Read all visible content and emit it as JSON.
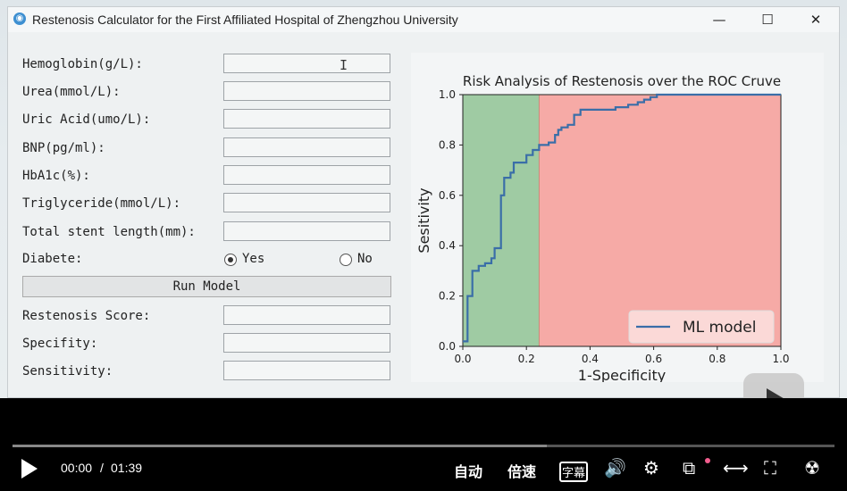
{
  "window": {
    "title": "Restenosis Calculator for the First Affiliated Hospital of Zhengzhou University",
    "minimize": "—",
    "maximize": "☐",
    "close": "✕"
  },
  "form": {
    "fields": [
      {
        "label": "Hemoglobin(g/L):",
        "value": ""
      },
      {
        "label": "Urea(mmol/L):",
        "value": ""
      },
      {
        "label": "Uric Acid(umo/L):",
        "value": ""
      },
      {
        "label": "BNP(pg/ml):",
        "value": ""
      },
      {
        "label": "HbA1c(%):",
        "value": ""
      },
      {
        "label": "Triglyceride(mmol/L):",
        "value": ""
      },
      {
        "label": "Total stent length(mm):",
        "value": ""
      }
    ],
    "diabete_label": "Diabete:",
    "radio_yes": "Yes",
    "radio_no": "No",
    "selected": "Yes",
    "run_button": "Run Model",
    "outputs": [
      {
        "label": "Restenosis Score:",
        "value": ""
      },
      {
        "label": "Specifity:",
        "value": ""
      },
      {
        "label": "Sensitivity:",
        "value": ""
      }
    ],
    "text_cursor": "I"
  },
  "chart_data": {
    "type": "line",
    "title": "Risk Analysis of Restenosis over the ROC Cruve",
    "xlabel": "1-Specificity",
    "ylabel": "Sesitivity",
    "xlim": [
      0.0,
      1.0
    ],
    "ylim": [
      0.0,
      1.0
    ],
    "xticks": [
      "0.0",
      "0.2",
      "0.4",
      "0.6",
      "0.8",
      "1.0"
    ],
    "yticks": [
      "0.0",
      "0.2",
      "0.4",
      "0.6",
      "0.8",
      "1.0"
    ],
    "threshold_x": 0.24,
    "regions": [
      {
        "from": 0.0,
        "to": 0.24,
        "color": "#9fcba3"
      },
      {
        "from": 0.24,
        "to": 1.0,
        "color": "#f6aaa6"
      }
    ],
    "series": [
      {
        "name": "ML model",
        "color": "#3a6ea8",
        "x": [
          0.0,
          0.015,
          0.015,
          0.03,
          0.03,
          0.05,
          0.05,
          0.07,
          0.07,
          0.09,
          0.09,
          0.1,
          0.1,
          0.12,
          0.12,
          0.13,
          0.13,
          0.15,
          0.15,
          0.16,
          0.16,
          0.2,
          0.2,
          0.22,
          0.22,
          0.24,
          0.24,
          0.27,
          0.27,
          0.29,
          0.29,
          0.3,
          0.3,
          0.31,
          0.31,
          0.33,
          0.33,
          0.35,
          0.35,
          0.37,
          0.37,
          0.48,
          0.48,
          0.52,
          0.52,
          0.55,
          0.55,
          0.57,
          0.57,
          0.59,
          0.59,
          0.61,
          0.61,
          0.64,
          0.64,
          1.0
        ],
        "y": [
          0.02,
          0.02,
          0.2,
          0.2,
          0.3,
          0.3,
          0.32,
          0.32,
          0.33,
          0.33,
          0.35,
          0.35,
          0.39,
          0.39,
          0.6,
          0.6,
          0.67,
          0.67,
          0.69,
          0.69,
          0.73,
          0.73,
          0.76,
          0.76,
          0.78,
          0.78,
          0.8,
          0.8,
          0.81,
          0.81,
          0.84,
          0.84,
          0.86,
          0.86,
          0.87,
          0.87,
          0.88,
          0.88,
          0.92,
          0.92,
          0.94,
          0.94,
          0.95,
          0.95,
          0.96,
          0.96,
          0.97,
          0.97,
          0.98,
          0.98,
          0.99,
          0.99,
          1.0,
          1.0,
          1.0,
          1.0
        ]
      }
    ],
    "legend": "lower-right"
  },
  "player": {
    "current_time": "00:00",
    "separator": "/",
    "duration": "01:39",
    "progress": 0.0,
    "buffered": 0.65,
    "auto_label": "自动",
    "speed_label": "倍速",
    "subtitle_icon_text": "字幕",
    "accent": "#00a1d6"
  }
}
